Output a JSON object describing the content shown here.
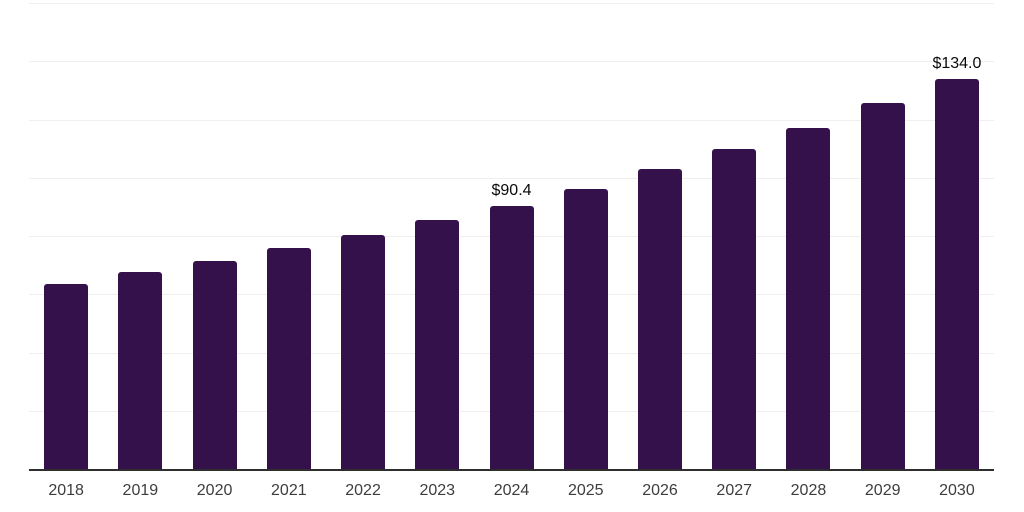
{
  "chart_data": {
    "type": "bar",
    "title": "",
    "categories": [
      "2018",
      "2019",
      "2020",
      "2021",
      "2022",
      "2023",
      "2024",
      "2025",
      "2026",
      "2027",
      "2028",
      "2029",
      "2030"
    ],
    "values": [
      63.5,
      67.5,
      71.5,
      75.8,
      80.2,
      85.5,
      90.4,
      96.2,
      103.0,
      110.0,
      117.2,
      125.5,
      134.0
    ],
    "data_labels": [
      "",
      "",
      "",
      "",
      "",
      "",
      "$90.4",
      "",
      "",
      "",
      "",
      "",
      "$134.0"
    ],
    "xlabel": "",
    "ylabel": "",
    "ylim": [
      0,
      160
    ],
    "gridline_interval": 20,
    "grid": "horizontal",
    "legend": "none",
    "y_tick_labels_visible": false,
    "colors": {
      "bar": "#35114C",
      "background": "#ffffff",
      "gridline": "#efefef",
      "axis_line": "#2e2e2e",
      "tick_label": "#3d3d3d",
      "data_label": "#0a0a0a"
    }
  }
}
